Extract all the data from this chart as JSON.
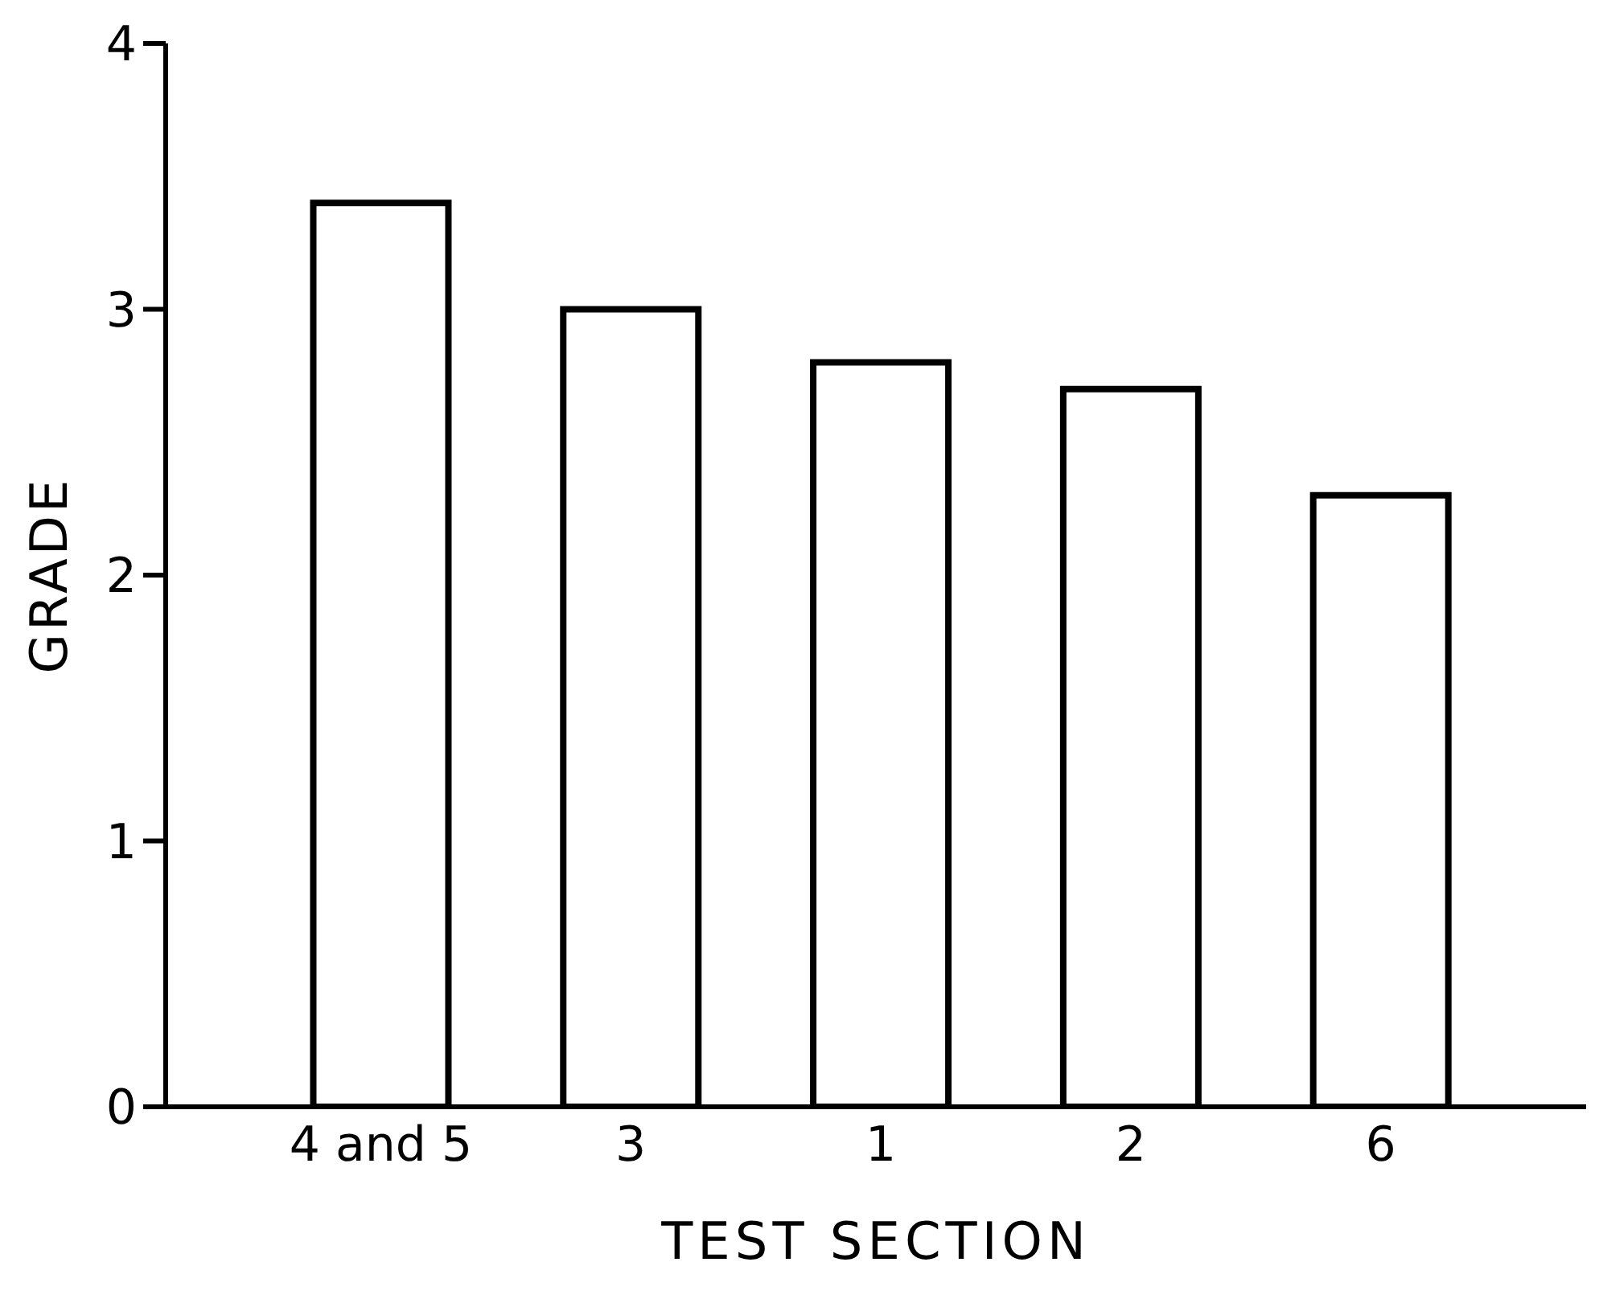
{
  "chart_data": {
    "type": "bar",
    "xlabel": "TEST SECTION",
    "ylabel": "GRADE",
    "categories": [
      "4 and 5",
      "3",
      "1",
      "2",
      "6"
    ],
    "values": [
      3.4,
      3.0,
      2.8,
      2.7,
      2.3
    ],
    "color": "#ffffff",
    "ylim": [
      0,
      4
    ],
    "yticks": [
      0,
      1,
      2,
      3,
      4
    ],
    "grid": false,
    "legend": false
  }
}
